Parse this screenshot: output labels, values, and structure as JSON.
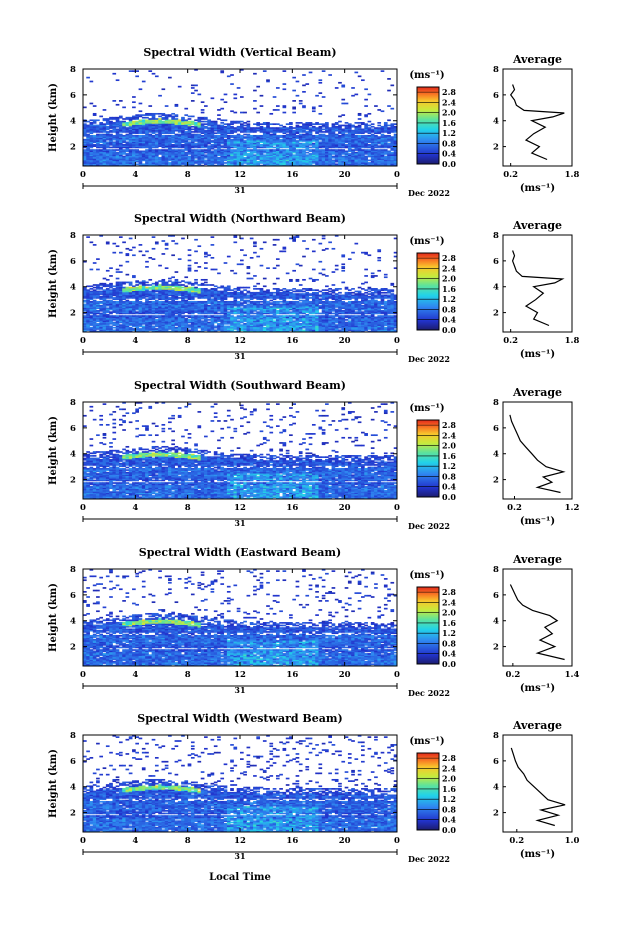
{
  "figure": {
    "xlabel": "Local Time",
    "day_label": "31",
    "month_label": "Dec 2022"
  },
  "chart_data": [
    {
      "type": "heatmap",
      "title": "Spectral Width (Vertical Beam)",
      "ylabel": "Height (km)",
      "xlabel": "Local Time",
      "x_ticks": [
        "0",
        "4",
        "8",
        "12",
        "16",
        "20",
        "0"
      ],
      "y_ticks": [
        "2",
        "4",
        "6",
        "8"
      ],
      "x_range_hours": [
        0,
        24
      ],
      "y_range_km": [
        0.5,
        8.0
      ],
      "colorbar": {
        "unit_label": "(ms⁻¹)",
        "ticks": [
          "0.0",
          "0.4",
          "0.8",
          "1.2",
          "1.6",
          "2.0",
          "2.4",
          "2.8"
        ],
        "range": [
          0.0,
          3.0
        ]
      },
      "profile": {
        "title": "Average",
        "x_ticks": [
          "0.2",
          "1.8"
        ],
        "x_range": [
          0.0,
          1.8
        ],
        "xlabel": "(ms⁻¹)",
        "y_ticks": [
          "2",
          "4",
          "6",
          "8"
        ],
        "heights": [
          1.0,
          1.5,
          2.0,
          2.5,
          3.0,
          3.5,
          4.0,
          4.3,
          4.6,
          4.8,
          5.2,
          5.6,
          6.0,
          6.4,
          6.8
        ],
        "values": [
          1.15,
          0.75,
          0.95,
          0.6,
          0.8,
          1.1,
          0.75,
          1.3,
          1.6,
          0.55,
          0.35,
          0.3,
          0.2,
          0.3,
          0.25
        ]
      }
    },
    {
      "type": "heatmap",
      "title": "Spectral Width (Northward Beam)",
      "ylabel": "Height (km)",
      "xlabel": "Local Time",
      "x_ticks": [
        "0",
        "4",
        "8",
        "12",
        "16",
        "20",
        "0"
      ],
      "y_ticks": [
        "2",
        "4",
        "6",
        "8"
      ],
      "x_range_hours": [
        0,
        24
      ],
      "y_range_km": [
        0.5,
        8.0
      ],
      "colorbar": {
        "unit_label": "(ms⁻¹)",
        "ticks": [
          "0.0",
          "0.4",
          "0.8",
          "1.2",
          "1.6",
          "2.0",
          "2.4",
          "2.8"
        ],
        "range": [
          0.0,
          3.0
        ]
      },
      "profile": {
        "title": "Average",
        "x_ticks": [
          "0.2",
          "1.8"
        ],
        "x_range": [
          0.0,
          1.8
        ],
        "xlabel": "(ms⁻¹)",
        "y_ticks": [
          "2",
          "4",
          "6",
          "8"
        ],
        "heights": [
          1.0,
          1.5,
          2.0,
          2.5,
          3.0,
          3.5,
          4.0,
          4.3,
          4.6,
          4.8,
          5.2,
          5.6,
          6.0,
          6.4,
          6.8
        ],
        "values": [
          1.2,
          0.8,
          0.9,
          0.6,
          0.85,
          1.05,
          0.8,
          1.35,
          1.55,
          0.5,
          0.35,
          0.3,
          0.25,
          0.3,
          0.25
        ]
      }
    },
    {
      "type": "heatmap",
      "title": "Spectral Width (Southward Beam)",
      "ylabel": "Height (km)",
      "xlabel": "Local Time",
      "x_ticks": [
        "0",
        "4",
        "8",
        "12",
        "16",
        "20",
        "0"
      ],
      "y_ticks": [
        "2",
        "4",
        "6",
        "8"
      ],
      "x_range_hours": [
        0,
        24
      ],
      "y_range_km": [
        0.5,
        8.0
      ],
      "colorbar": {
        "unit_label": "(ms⁻¹)",
        "ticks": [
          "0.0",
          "0.4",
          "0.8",
          "1.2",
          "1.6",
          "2.0",
          "2.4",
          "2.8"
        ],
        "range": [
          0.0,
          3.0
        ]
      },
      "profile": {
        "title": "Average",
        "x_ticks": [
          "0.2",
          "1.2"
        ],
        "x_range": [
          0.0,
          1.2
        ],
        "xlabel": "(ms⁻¹)",
        "y_ticks": [
          "2",
          "4",
          "6",
          "8"
        ],
        "heights": [
          1.0,
          1.4,
          1.8,
          2.2,
          2.6,
          3.0,
          3.5,
          4.0,
          4.5,
          5.0,
          5.5,
          6.0,
          6.5,
          7.0
        ],
        "values": [
          1.0,
          0.6,
          0.85,
          0.7,
          1.05,
          0.75,
          0.6,
          0.5,
          0.4,
          0.3,
          0.25,
          0.2,
          0.15,
          0.12
        ]
      }
    },
    {
      "type": "heatmap",
      "title": "Spectral Width (Eastward Beam)",
      "ylabel": "Height (km)",
      "xlabel": "Local Time",
      "x_ticks": [
        "0",
        "4",
        "8",
        "12",
        "16",
        "20",
        "0"
      ],
      "y_ticks": [
        "2",
        "4",
        "6",
        "8"
      ],
      "x_range_hours": [
        0,
        24
      ],
      "y_range_km": [
        0.5,
        8.0
      ],
      "colorbar": {
        "unit_label": "(ms⁻¹)",
        "ticks": [
          "0.0",
          "0.4",
          "0.8",
          "1.2",
          "1.6",
          "2.0",
          "2.4",
          "2.8"
        ],
        "range": [
          0.0,
          3.0
        ]
      },
      "profile": {
        "title": "Average",
        "x_ticks": [
          "0.2",
          "1.4"
        ],
        "x_range": [
          0.0,
          1.4
        ],
        "xlabel": "(ms⁻¹)",
        "y_ticks": [
          "2",
          "4",
          "6",
          "8"
        ],
        "heights": [
          1.0,
          1.5,
          2.0,
          2.5,
          3.0,
          3.5,
          4.0,
          4.4,
          4.8,
          5.2,
          5.6,
          6.0,
          6.4,
          6.8
        ],
        "values": [
          1.25,
          0.7,
          1.05,
          0.75,
          1.0,
          0.85,
          1.1,
          0.95,
          0.6,
          0.4,
          0.3,
          0.25,
          0.2,
          0.15
        ]
      }
    },
    {
      "type": "heatmap",
      "title": "Spectral Width (Westward Beam)",
      "ylabel": "Height (km)",
      "xlabel": "Local Time",
      "x_ticks": [
        "0",
        "4",
        "8",
        "12",
        "16",
        "20",
        "0"
      ],
      "y_ticks": [
        "2",
        "4",
        "6",
        "8"
      ],
      "x_range_hours": [
        0,
        24
      ],
      "y_range_km": [
        0.5,
        8.0
      ],
      "colorbar": {
        "unit_label": "(ms⁻¹)",
        "ticks": [
          "0.0",
          "0.4",
          "0.8",
          "1.2",
          "1.6",
          "2.0",
          "2.4",
          "2.8"
        ],
        "range": [
          0.0,
          3.0
        ]
      },
      "profile": {
        "title": "Average",
        "x_ticks": [
          "0.2",
          "1.0"
        ],
        "x_range": [
          0.0,
          1.0
        ],
        "xlabel": "(ms⁻¹)",
        "y_ticks": [
          "2",
          "4",
          "6",
          "8"
        ],
        "heights": [
          1.0,
          1.4,
          1.8,
          2.2,
          2.6,
          3.0,
          3.5,
          4.0,
          4.5,
          5.0,
          5.5,
          6.0,
          6.5,
          7.0
        ],
        "values": [
          0.75,
          0.5,
          0.8,
          0.55,
          0.9,
          0.65,
          0.55,
          0.45,
          0.35,
          0.3,
          0.22,
          0.18,
          0.15,
          0.12
        ]
      }
    }
  ]
}
